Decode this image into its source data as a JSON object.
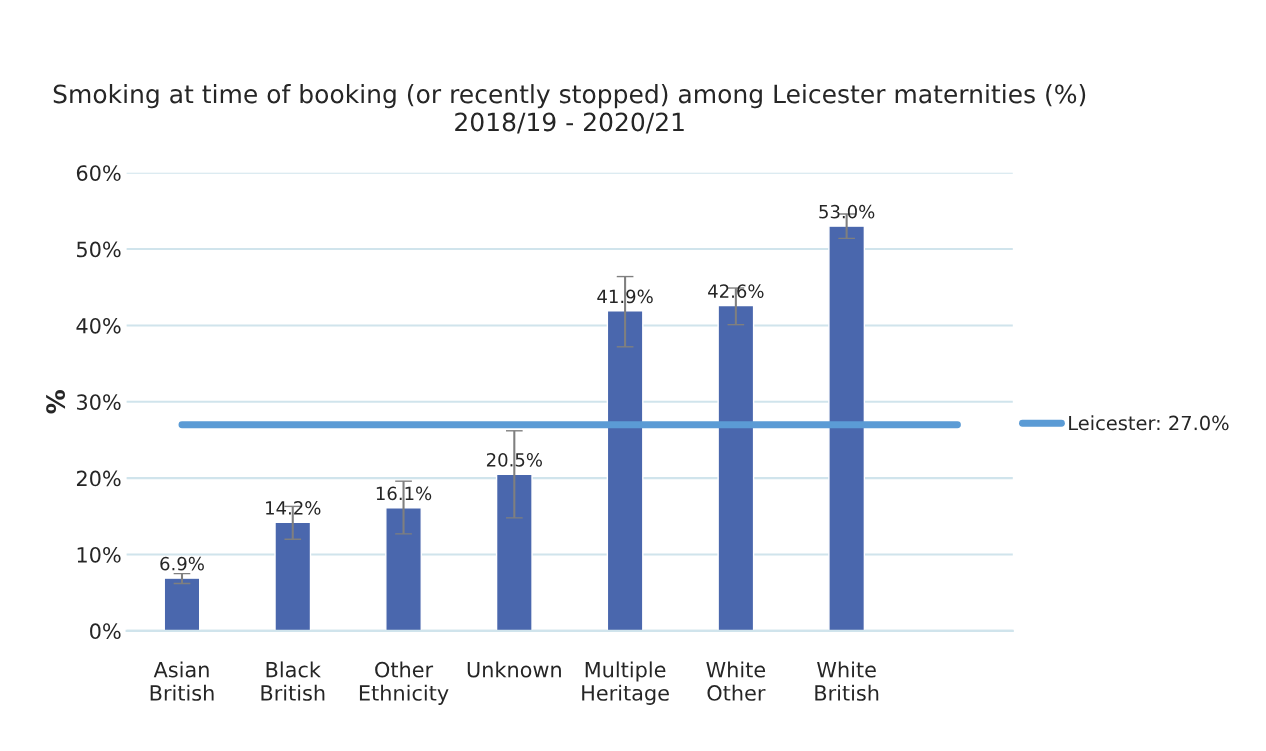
{
  "chart_data": {
    "type": "bar",
    "title": "Smoking at time of booking (or recently stopped) among Leicester maternities (%)\n2018/19 - 2020/21",
    "ylabel": "%",
    "categories": [
      "Asian\nBritish",
      "Black\nBritish",
      "Other\nEthnicity",
      "Unknown",
      "Multiple\nHeritage",
      "White\nOther",
      "White\nBritish",
      null
    ],
    "series": [
      {
        "color": "#4a67ad",
        "values": [
          6.9,
          14.2,
          16.1,
          20.5,
          41.9,
          42.6,
          53.0,
          null
        ],
        "value_labels": [
          "6.9%",
          "14.2%",
          "16.1%",
          "20.5%",
          "41.9%",
          "42.6%",
          "53.0%",
          null
        ],
        "errors": [
          [
            6.2,
            7.5
          ],
          [
            12.0,
            16.3
          ],
          [
            12.7,
            19.6
          ],
          [
            14.8,
            26.2
          ],
          [
            37.2,
            46.4
          ],
          [
            40.1,
            44.9
          ],
          [
            51.4,
            54.6
          ],
          null
        ]
      },
      {
        "type": "line",
        "name": "Leicester: 27.0%",
        "color": "#5b9bd5",
        "values": [
          27.0,
          27.0,
          27.0,
          27.0,
          27.0,
          27.0,
          27.0,
          27.0
        ]
      }
    ],
    "ylim": [
      0,
      60
    ],
    "yticks": [
      {
        "value": 0,
        "label": "0%"
      },
      {
        "value": 10,
        "label": "10%"
      },
      {
        "value": 20,
        "label": "20%"
      },
      {
        "value": 30,
        "label": "30%"
      },
      {
        "value": 40,
        "label": "40%"
      },
      {
        "value": 50,
        "label": "50%"
      },
      {
        "value": 60,
        "label": "60%"
      }
    ],
    "grid": "y",
    "legend": "right"
  }
}
